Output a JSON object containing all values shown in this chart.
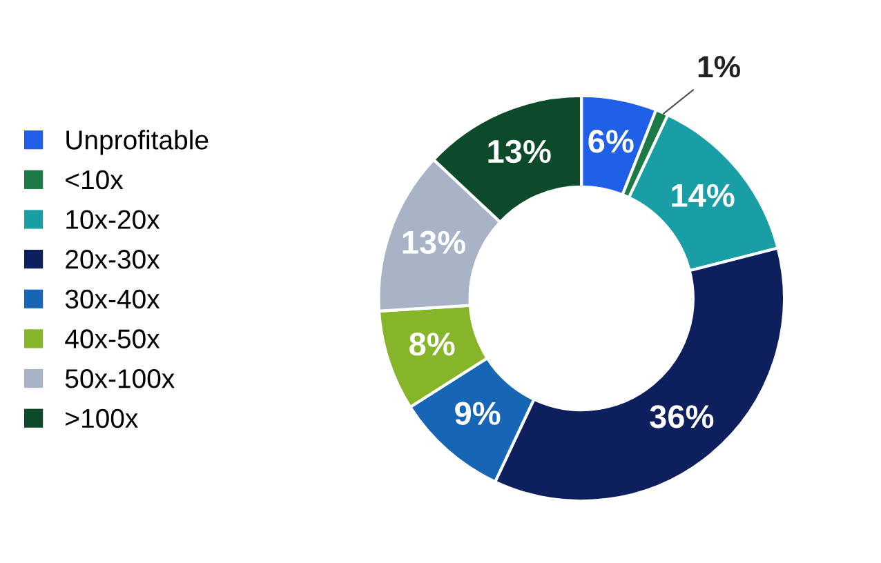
{
  "chart_data": {
    "type": "donut",
    "categories": [
      "Unprofitable",
      "<10x",
      "10x-20x",
      "20x-30x",
      "30x-40x",
      "40x-50x",
      "50x-100x",
      ">100x"
    ],
    "values": [
      6,
      1,
      14,
      36,
      9,
      8,
      13,
      13
    ],
    "colors": [
      "#2060e8",
      "#1b7a45",
      "#1a9ea6",
      "#0e1f5e",
      "#1766b5",
      "#86b52a",
      "#a9b3c6",
      "#0c4a2a"
    ],
    "value_labels": [
      "6%",
      "1%",
      "14%",
      "36%",
      "9%",
      "8%",
      "13%",
      "13%"
    ],
    "legend": "left"
  }
}
